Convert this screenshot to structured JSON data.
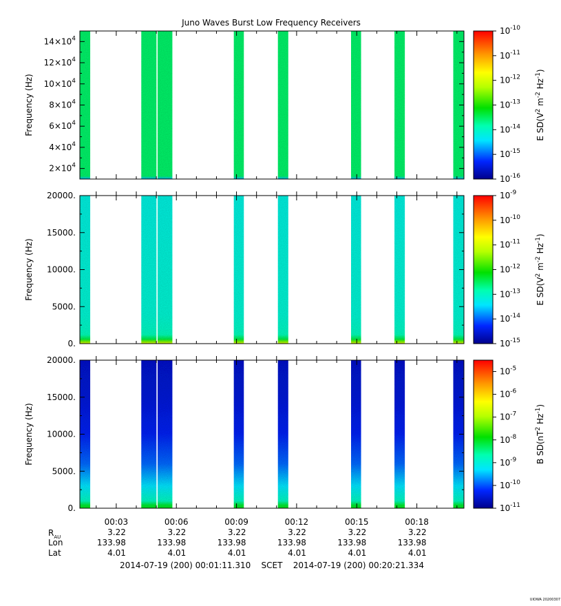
{
  "chart_data": {
    "type": "heatmap",
    "title": "Juno Waves Burst Low Frequency Receivers",
    "bursts": [
      {
        "start": "00:01:11",
        "end": "00:01:42"
      },
      {
        "start": "00:04:15",
        "end": "00:05:48"
      },
      {
        "start": "00:08:52",
        "end": "00:09:22"
      },
      {
        "start": "00:11:04",
        "end": "00:11:35"
      },
      {
        "start": "00:14:43",
        "end": "00:15:13"
      },
      {
        "start": "00:16:53",
        "end": "00:17:24"
      },
      {
        "start": "00:19:49",
        "end": "00:20:21"
      }
    ],
    "xlim": [
      "00:01:11",
      "00:20:21"
    ],
    "x_ticks": [
      "00:03",
      "00:06",
      "00:09",
      "00:12",
      "00:15",
      "00:18"
    ],
    "panels": [
      {
        "ylabel": "Frequency (Hz)",
        "ylim": [
          10000,
          150000
        ],
        "yticks": [
          20000,
          40000,
          60000,
          80000,
          100000,
          120000,
          140000
        ],
        "ytick_labels": [
          [
            "2×10",
            "4"
          ],
          [
            "4×10",
            "4"
          ],
          [
            "6×10",
            "4"
          ],
          [
            "8×10",
            "4"
          ],
          [
            "10×10",
            "4"
          ],
          [
            "12×10",
            "4"
          ],
          [
            "14×10",
            "4"
          ]
        ],
        "colorbar_label": "E SD(V² m⁻² Hz⁻¹)",
        "colorbar_label_parts": [
          "E SD(V",
          "2",
          " m",
          "-2",
          " Hz",
          "-1",
          ")"
        ],
        "colorbar_exponents": [
          "-10",
          "-11",
          "-12",
          "-13",
          "-14",
          "-15",
          "-16"
        ],
        "colorbar_range_log10": [
          -16,
          -10
        ],
        "colorbar_ticks": [
          -10,
          -11,
          -12,
          -13,
          -14,
          -15,
          -16
        ],
        "spectrum_profile": [
          [
            0.0,
            -14.6
          ],
          [
            0.02,
            -13.55
          ],
          [
            1.0,
            -13.55
          ]
        ]
      },
      {
        "ylabel": "Frequency (Hz)",
        "ylim": [
          0,
          20000
        ],
        "yticks": [
          0,
          5000,
          10000,
          15000,
          20000
        ],
        "ytick_labels": [
          "0.",
          "5000.",
          "10000.",
          "15000.",
          "20000."
        ],
        "colorbar_label": "E SD(V² m⁻² Hz⁻¹)",
        "colorbar_label_parts": [
          "E SD(V",
          "2",
          " m",
          "-2",
          " Hz",
          "-1",
          ")"
        ],
        "colorbar_exponents": [
          "-9",
          "-10",
          "-11",
          "-12",
          "-13",
          "-14",
          "-15"
        ],
        "colorbar_range_log10": [
          -15,
          -9
        ],
        "colorbar_ticks": [
          -9,
          -10,
          -11,
          -12,
          -13,
          -14,
          -15
        ],
        "spectrum_profile": [
          [
            0.0,
            -10.8
          ],
          [
            0.015,
            -11.6
          ],
          [
            0.03,
            -12.4
          ],
          [
            0.06,
            -12.9
          ],
          [
            0.1,
            -13.0
          ],
          [
            0.2,
            -13.1
          ],
          [
            1.0,
            -13.2
          ]
        ]
      },
      {
        "ylabel": "Frequency (Hz)",
        "ylim": [
          0,
          20000
        ],
        "yticks": [
          0,
          5000,
          10000,
          15000,
          20000
        ],
        "ytick_labels": [
          "0.",
          "5000.",
          "10000.",
          "15000.",
          "20000."
        ],
        "colorbar_label": "B SD(nT² Hz⁻¹)",
        "colorbar_label_parts": [
          "B SD(nT",
          "2",
          " Hz",
          "-1",
          ")"
        ],
        "colorbar_exponents": [
          "-5",
          "-6",
          "-7",
          "-8",
          "-9",
          "-10",
          "-11"
        ],
        "colorbar_range_log10": [
          -11,
          -4.5
        ],
        "colorbar_ticks": [
          -5,
          -6,
          -7,
          -8,
          -9,
          -10,
          -11
        ],
        "spectrum_profile": [
          [
            0.0,
            -8.0
          ],
          [
            0.02,
            -8.1
          ],
          [
            0.05,
            -8.8
          ],
          [
            0.15,
            -9.3
          ],
          [
            0.3,
            -9.9
          ],
          [
            0.5,
            -10.3
          ],
          [
            0.75,
            -10.5
          ],
          [
            1.0,
            -10.6
          ]
        ]
      }
    ],
    "ephemeris": {
      "rows": [
        {
          "label": "R",
          "label_sub": "AU",
          "values": [
            "3.22",
            "3.22",
            "3.22",
            "3.22",
            "3.22",
            "3.22"
          ]
        },
        {
          "label": "Lon",
          "values": [
            "133.98",
            "133.98",
            "133.98",
            "133.98",
            "133.98",
            "133.98"
          ]
        },
        {
          "label": "Lat",
          "values": [
            "4.01",
            "4.01",
            "4.01",
            "4.01",
            "4.01",
            "4.01"
          ]
        }
      ]
    },
    "time_range_text": "2014-07-19 (200) 00:01:11.310    SCET    2014-07-19 (200) 00:20:21.334",
    "credit": "UIOWA 20200307"
  }
}
